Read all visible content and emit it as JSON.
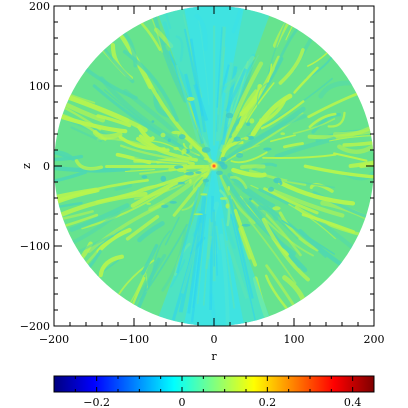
{
  "chart_data": {
    "type": "heatmap",
    "xlabel": "r",
    "ylabel": "z",
    "xlim": [
      -200,
      200
    ],
    "ylim": [
      -200,
      200
    ],
    "x_ticks": [
      -200,
      -100,
      0,
      100,
      200
    ],
    "y_ticks": [
      -200,
      -100,
      0,
      100,
      200
    ],
    "x_tick_labels": [
      "−200",
      "−100",
      "0",
      "100",
      "200"
    ],
    "y_tick_labels": [
      "−200",
      "−100",
      "0",
      "100",
      "200"
    ],
    "domain_radius": 200,
    "colorbar": {
      "range": [
        -0.3,
        0.45
      ],
      "ticks": [
        -0.2,
        0,
        0.2,
        0.4
      ],
      "tick_labels": [
        "−0.2",
        "0",
        "0.2",
        "0.4"
      ],
      "colormap": [
        "#00007f",
        "#0000ff",
        "#0080ff",
        "#00ffff",
        "#80ff80",
        "#ffff00",
        "#ff8000",
        "#ff0000",
        "#7f0000"
      ]
    },
    "colors": {
      "background_field": "#66e38e",
      "polar_funnel": "#39e3ee",
      "filaments": "#b7f54e",
      "axes": "#000000"
    }
  }
}
